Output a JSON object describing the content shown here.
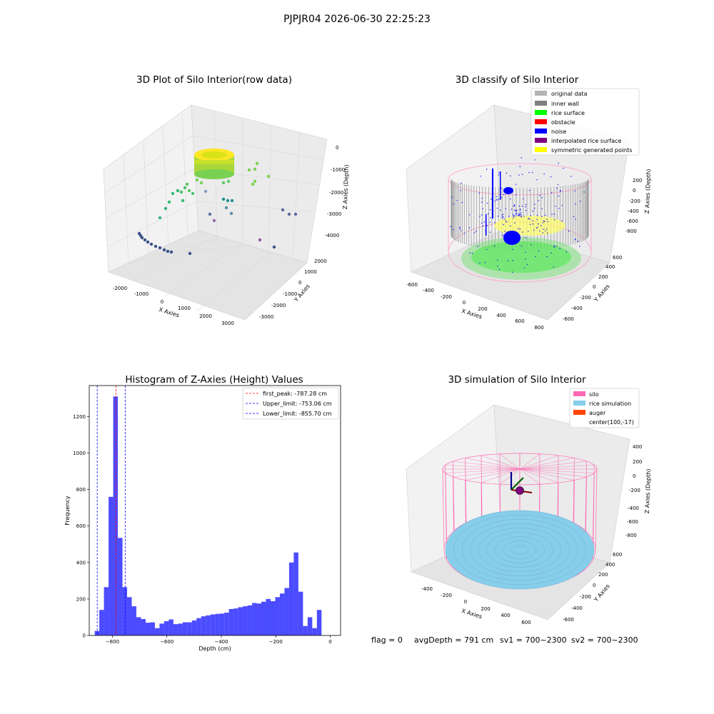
{
  "suptitle": "PJPJR04 2026-06-30 22:25:23",
  "status_line": {
    "flag": "flag = 0",
    "avg_depth": "avgDepth = 791 cm",
    "sv1": "sv1 = 700~2300",
    "sv2": "sv2 = 700~2300"
  },
  "panels": {
    "raw": {
      "title": "3D Plot of Silo Interior(row data)",
      "xlabel": "X Axies",
      "ylabel": "Y Axies",
      "zlabel": "Z Axies (Depth)",
      "xticks": [
        "-2000",
        "-1000",
        "0",
        "1000",
        "2000",
        "3000"
      ],
      "yticks": [
        "-3000",
        "-2000",
        "-1000",
        "0",
        "1000",
        "2000"
      ],
      "zticks": [
        "-4000",
        "-3000",
        "-2000",
        "-1000",
        "0"
      ]
    },
    "classify": {
      "title": "3D classify of Silo Interior",
      "xlabel": "X Axies",
      "ylabel": "Y Axies",
      "zlabel": "Z Axies (Depth)",
      "xticks": [
        "-600",
        "-400",
        "-200",
        "0",
        "200",
        "400",
        "600",
        "800"
      ],
      "yticks": [
        "-600",
        "-400",
        "-200",
        "0",
        "200",
        "400",
        "600"
      ],
      "zticks": [
        "-800",
        "-600",
        "-400",
        "-200",
        "0",
        "200"
      ],
      "legend": [
        {
          "label": "original data",
          "color": "#b3b3b3"
        },
        {
          "label": "inner wall",
          "color": "#808080"
        },
        {
          "label": "rice surface",
          "color": "#00ff00"
        },
        {
          "label": "obstacle",
          "color": "#ff0000"
        },
        {
          "label": "noise",
          "color": "#0000ff"
        },
        {
          "label": "interpolated rice surface",
          "color": "#800080"
        },
        {
          "label": "symmetric generated points",
          "color": "#ffff00"
        }
      ]
    },
    "simulation": {
      "title": "3D simulation of Silo Interior",
      "xlabel": "X Axies",
      "ylabel": "Y Axies",
      "zlabel": "Z Axies (Depth)",
      "xticks": [
        "-400",
        "-200",
        "0",
        "200",
        "400",
        "600"
      ],
      "yticks": [
        "-600",
        "-400",
        "-200",
        "0",
        "200",
        "400",
        "600"
      ],
      "zticks": [
        "-800",
        "-600",
        "-400",
        "-200",
        "0",
        "200",
        "400"
      ],
      "legend": [
        {
          "label": "silo",
          "color": "#ff69b4"
        },
        {
          "label": "rice simulation",
          "color": "#87ceeb"
        },
        {
          "label": "auger",
          "color": "#ff4500"
        },
        {
          "label": "center(100,-17)",
          "color": ""
        }
      ]
    }
  },
  "chart_data": [
    {
      "type": "bar",
      "title": "Histogram of Z-Axies (Height) Values",
      "xlabel": "Depth (cm)",
      "ylabel": "Frequency",
      "xlim": [
        -885,
        38
      ],
      "ylim": [
        0,
        1370
      ],
      "xticks": [
        -800,
        -600,
        -400,
        -200,
        0
      ],
      "yticks": [
        0,
        200,
        400,
        600,
        800,
        1000,
        1200
      ],
      "bar_color": "#0000ff",
      "bin_start": -865,
      "bin_width": 17.0,
      "values": [
        25,
        140,
        265,
        760,
        1310,
        535,
        265,
        210,
        160,
        100,
        90,
        70,
        72,
        40,
        65,
        78,
        88,
        62,
        65,
        72,
        72,
        82,
        95,
        105,
        110,
        115,
        118,
        120,
        125,
        145,
        148,
        155,
        160,
        165,
        178,
        175,
        185,
        200,
        188,
        210,
        230,
        260,
        400,
        455,
        240,
        52,
        100,
        40,
        140
      ],
      "lines": [
        {
          "label": "first_peak: -787.28 cm",
          "x": -787.28,
          "color": "#ff0000"
        },
        {
          "label": "Upper_limit: -753.06 cm",
          "x": -753.06,
          "color": "#0000ff"
        },
        {
          "label": "Lower_limit: -855.70 cm",
          "x": -855.7,
          "color": "#0000ff"
        }
      ],
      "legend_position": "upper right",
      "grid": false
    }
  ]
}
